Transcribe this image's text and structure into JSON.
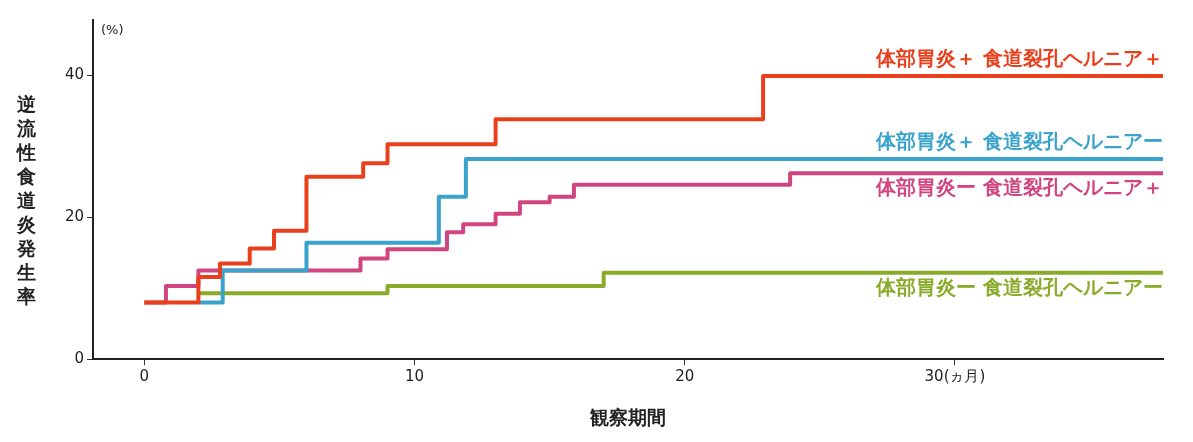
{
  "chart_data": {
    "type": "step",
    "ylabel": "逆流性食道炎発生率",
    "xlabel": "観察期間",
    "annotations": [
      "(%)"
    ],
    "xlim": [
      -1.9,
      37.7
    ],
    "xticks": [
      0,
      10,
      20,
      {
        "value": 30,
        "label": "30(ヵ月)"
      }
    ],
    "ylim": [
      0,
      47.8
    ],
    "yticks": [
      0,
      20,
      40
    ],
    "grid": false,
    "legend": false,
    "marker": "none",
    "line_style": "solid",
    "series": [
      {
        "name": "体部胃炎＋ 食道裂孔ヘルニア＋",
        "color": "#e8401c",
        "x": [
          0,
          2,
          2.8,
          3.9,
          4.8,
          6,
          8.1,
          9,
          13,
          22.9,
          37.7
        ],
        "values": [
          8,
          11.6,
          13.5,
          15.6,
          18.1,
          25.7,
          27.6,
          30.3,
          33.8,
          39.9,
          39.9
        ]
      },
      {
        "name": "体部胃炎＋ 食道裂孔ヘルニアー",
        "color": "#3aa3cc",
        "x": [
          2,
          2.9,
          6,
          10.9,
          11.9,
          37.7
        ],
        "values": [
          8,
          12.5,
          16.4,
          22.9,
          28.2,
          28.2
        ]
      },
      {
        "name": "体部胃炎ー 食道裂孔ヘルニア＋",
        "color": "#d0457f",
        "x": [
          0,
          0.8,
          2,
          8,
          9,
          11.2,
          11.8,
          13,
          13.9,
          15,
          15.9,
          23.9,
          37.7
        ],
        "values": [
          8,
          10.3,
          12.5,
          14.2,
          15.5,
          17.9,
          19,
          20.5,
          22.1,
          22.9,
          24.6,
          26.2,
          26.2
        ]
      },
      {
        "name": "体部胃炎ー 食道裂孔ヘルニアー",
        "color": "#8aab2a",
        "x": [
          2,
          9,
          17,
          37.7
        ],
        "values": [
          9.3,
          10.3,
          12.2,
          12.2
        ]
      }
    ]
  }
}
